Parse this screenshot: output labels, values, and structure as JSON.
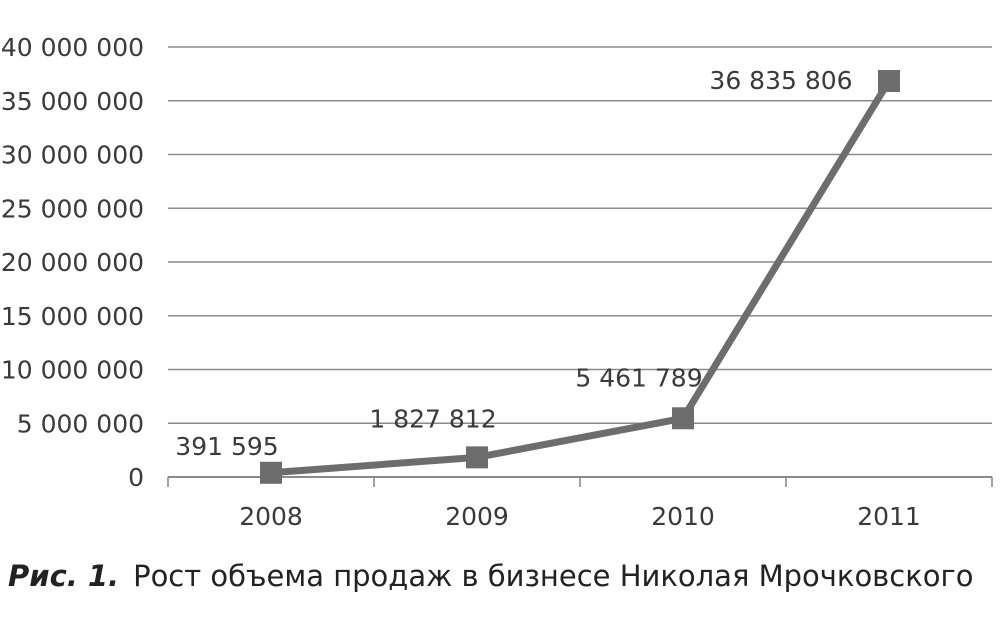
{
  "chart_data": {
    "type": "line",
    "categories": [
      "2008",
      "2009",
      "2010",
      "2011"
    ],
    "series": [
      {
        "values": [
          391595,
          1827812,
          5461789,
          36835806
        ],
        "data_labels": [
          "391 595",
          "1 827 812",
          "5 461 789",
          "36 835 806"
        ]
      }
    ],
    "ylim": [
      0,
      40000000
    ],
    "yticks": [
      0,
      5000000,
      10000000,
      15000000,
      20000000,
      25000000,
      30000000,
      35000000,
      40000000
    ],
    "ytick_labels": [
      "0",
      "5 000 000",
      "10 000 000",
      "15 000 000",
      "20 000 000",
      "25 000 000",
      "30 000 000",
      "35 000 000",
      "40 000 000"
    ],
    "grid": true,
    "legend": "none",
    "marker": "square",
    "line_color": "#6d6d6d",
    "grid_color": "#8a8a8a"
  },
  "caption": {
    "prefix": "Рис. 1.",
    "text": "Рост объема продаж в бизнесе Николая Мрочковского"
  }
}
